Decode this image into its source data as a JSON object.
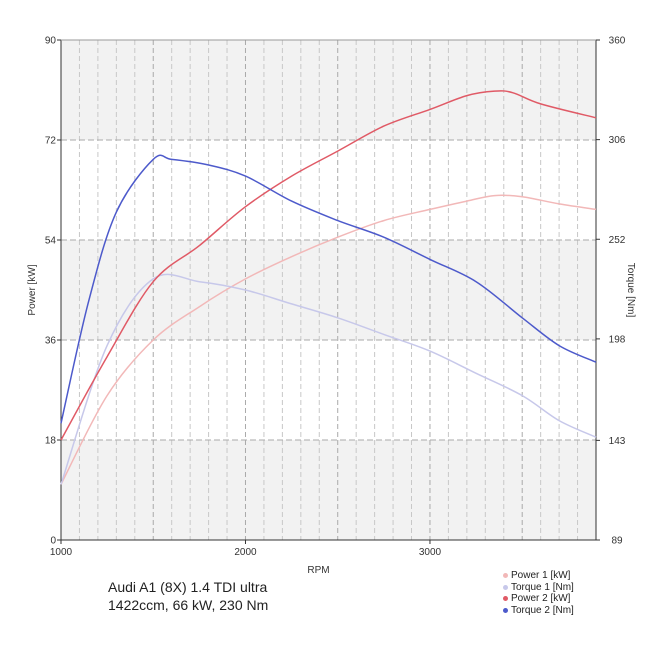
{
  "chart_data": {
    "type": "line",
    "title": "",
    "xlabel": "RPM",
    "ylabel_left": "Power [kW]",
    "ylabel_right": "Torque [Nm]",
    "xlim": [
      1000,
      3900
    ],
    "ylim_left": [
      0,
      90
    ],
    "ylim_right": [
      89,
      360
    ],
    "x_ticks": [
      1000,
      2000,
      3000
    ],
    "y_ticks_left": [
      0,
      18,
      36,
      54,
      72,
      90
    ],
    "y_ticks_right": [
      89,
      143,
      198,
      252,
      306,
      360
    ],
    "grid": true,
    "legend_position": "bottom-right",
    "series": [
      {
        "name": "Power 1 [kW]",
        "axis": "left",
        "color": "#f2b8b8",
        "x": [
          1000,
          1250,
          1500,
          1750,
          2000,
          2250,
          2500,
          2750,
          3000,
          3200,
          3350,
          3500,
          3700,
          3900
        ],
        "y": [
          10,
          26,
          36,
          42,
          47,
          51,
          54.5,
          57.5,
          59.5,
          61,
          62,
          61.8,
          60.5,
          59.5
        ]
      },
      {
        "name": "Torque 1 [Nm]",
        "axis": "left",
        "color": "#c7c8ea",
        "x": [
          1000,
          1250,
          1500,
          1750,
          2000,
          2250,
          2500,
          2750,
          3000,
          3250,
          3500,
          3700,
          3900
        ],
        "y": [
          10,
          35,
          47,
          46.5,
          45,
          42.5,
          40,
          37,
          34,
          30,
          26,
          21.5,
          18.5
        ]
      },
      {
        "name": "Power 2 [kW]",
        "axis": "left",
        "color": "#e05a66",
        "x": [
          1000,
          1250,
          1500,
          1750,
          2000,
          2250,
          2500,
          2750,
          3000,
          3200,
          3350,
          3450,
          3600,
          3900
        ],
        "y": [
          18,
          33,
          46.5,
          53,
          60,
          65.5,
          70,
          74.5,
          77.5,
          80,
          80.8,
          80.5,
          78.5,
          76
        ]
      },
      {
        "name": "Torque 2 [Nm]",
        "axis": "left",
        "color": "#4d5acb",
        "x": [
          1000,
          1150,
          1300,
          1500,
          1600,
          1800,
          2000,
          2250,
          2500,
          2750,
          3000,
          3250,
          3500,
          3700,
          3900
        ],
        "y": [
          21,
          43,
          59,
          68.5,
          68.5,
          67.5,
          65.5,
          61,
          57.5,
          54.5,
          50.5,
          46.5,
          40,
          35,
          32
        ]
      }
    ]
  },
  "caption": {
    "line1": "Audi A1 (8X) 1.4 TDI ultra",
    "line2": "1422ccm, 66 kW, 230 Nm"
  },
  "legend": {
    "items": [
      {
        "label": "Power 1 [kW]",
        "color": "#f2b8b8"
      },
      {
        "label": "Torque 1 [Nm]",
        "color": "#c7c8ea"
      },
      {
        "label": "Power 2 [kW]",
        "color": "#e05a66"
      },
      {
        "label": "Torque 2 [Nm]",
        "color": "#4d5acb"
      }
    ]
  }
}
